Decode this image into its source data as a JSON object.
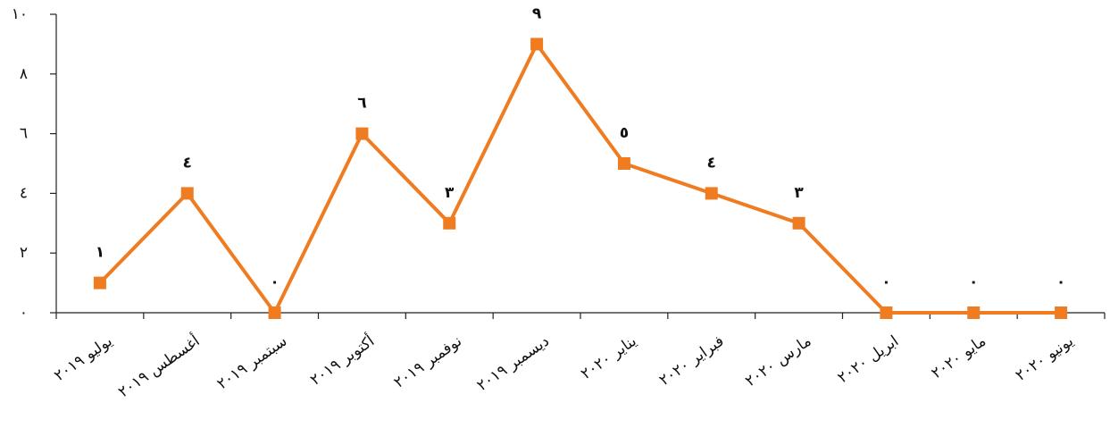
{
  "chart_data": {
    "type": "line",
    "categories": [
      "يوليو ٢٠١٩",
      "أغسطس ٢٠١٩",
      "سبتمبر ٢٠١٩",
      "أكتوبر ٢٠١٩",
      "نوفمبر ٢٠١٩",
      "ديسمبر ٢٠١٩",
      "يناير ٢٠٢٠",
      "فبراير ٢٠٢٠",
      "مارس ٢٠٢٠",
      "ابريل ٢٠٢٠",
      "مايو ٢٠٢٠",
      "يونيو ٢٠٢٠"
    ],
    "series": [
      {
        "color": "#f07c22",
        "values": [
          1,
          4,
          0,
          6,
          3,
          9,
          5,
          4,
          3,
          0,
          0,
          0
        ],
        "value_labels": [
          "١",
          "٤",
          "٠",
          "٦",
          "٣",
          "٩",
          "٥",
          "٤",
          "٣",
          "٠",
          "٠",
          "٠"
        ]
      }
    ],
    "ylim": [
      0,
      10
    ],
    "yticks": [
      {
        "value": 0,
        "label": "٠"
      },
      {
        "value": 2,
        "label": "٢"
      },
      {
        "value": 4,
        "label": "٤"
      },
      {
        "value": 6,
        "label": "٦"
      },
      {
        "value": 8,
        "label": "٨"
      },
      {
        "value": 10,
        "label": "١٠"
      }
    ],
    "grid": false
  }
}
